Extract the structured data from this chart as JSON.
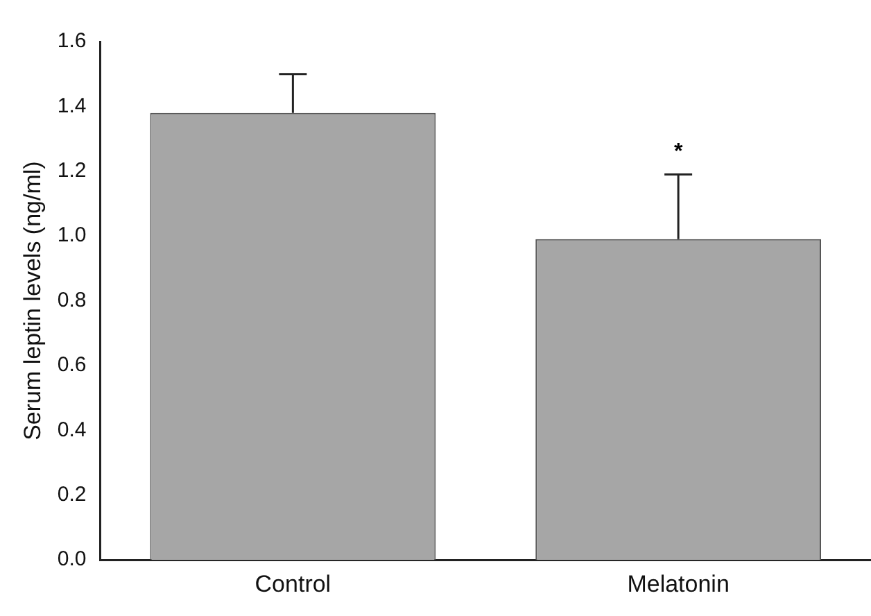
{
  "chart_data": {
    "type": "bar",
    "ylabel": "Serum leptin levels (ng/ml)",
    "categories": [
      "Control",
      "Melatonin"
    ],
    "values": [
      1.38,
      0.99
    ],
    "errors": [
      [
        1.38,
        1.5
      ],
      [
        0.99,
        1.19
      ]
    ],
    "color": "#a6a6a6",
    "ylim": [
      0,
      1.6
    ],
    "yticks": [
      {
        "value": 0,
        "label": "0.0"
      },
      0.2,
      0.4,
      0.6,
      0.8,
      {
        "value": 1,
        "label": "1.0"
      },
      1.2,
      1.4,
      1.6
    ],
    "annotations": [
      "*"
    ],
    "grid": false,
    "legend": false
  }
}
